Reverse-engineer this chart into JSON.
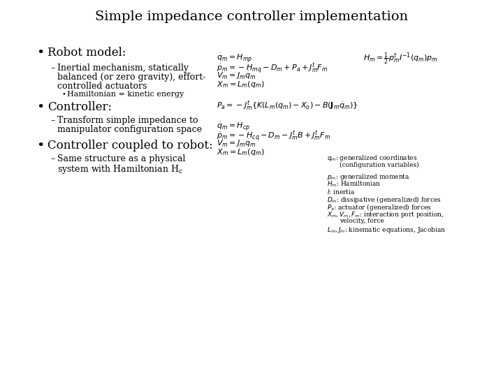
{
  "title": "Simple impedance controller implementation",
  "background_color": "#ffffff",
  "text_color": "#000000",
  "title_fontsize": 14,
  "bullet_fontsize": 12,
  "sub_fontsize": 9,
  "subsub_fontsize": 8,
  "eq_fontsize": 8,
  "leg_fontsize": 6.5,
  "bullet1": "Robot model:",
  "bullet1_sub1_line1": "Inertial mechanism, statically",
  "bullet1_sub1_line2": "balanced (or zero gravity), effort-",
  "bullet1_sub1_line3": "controlled actuators",
  "bullet1_sub2": "Hamiltonian = kinetic energy",
  "bullet2": "Controller:",
  "bullet2_sub1_line1": "Transform simple impedance to",
  "bullet2_sub1_line2": "manipulator configuration space",
  "bullet3": "Controller coupled to robot:",
  "bullet3_sub1_line1": "Same structure as a physical",
  "bullet3_sub1_line2": "system with Hamiltonian H$_c$",
  "eq1a": "$\\dot{q}_m = H_{mp}$",
  "eq1b": "$H_m = \\frac{1}{2}p_m^t I^{-1}(q_m)p_m$",
  "eq2": "$\\dot{p}_m = -H_{mq} - D_m + P_a + J_m^t F_m$",
  "eq3": "$V_m = J_m \\dot{q}_m$",
  "eq4": "$X_m = L_m(q_m)$",
  "eq5": "$P_a = -J_m^t \\{K(L_m(q_m) - X_o) - B(\\mathbf{J}_m \\dot{q}_m)\\}$",
  "eq6": "$\\dot{q}_m = H_{cp}$",
  "eq7": "$\\dot{p}_m = -H_{cq} - D_m - J_m^t B + J_m^t F_m$",
  "eq8": "$V_m = J_m \\dot{q}_m$",
  "eq9": "$X_m = L_m(q_m)$",
  "leg1": "$q_m$: generalized coordinates",
  "leg1b": "(configuration variables)",
  "leg2": "$p_m$: generalized momenta",
  "leg3": "$H_m$: Hamiltonian",
  "leg4": "$I$: inertia",
  "leg5": "$D_m$: dissipative (generalized) forces",
  "leg6": "$P_a$: actuator (generalized) forces",
  "leg7": "$X_m, V_m, F_m$: interaction port position,",
  "leg7b": "velocity, force",
  "leg8": "$L_m, J_m$: kinematic equations, Jacobian"
}
